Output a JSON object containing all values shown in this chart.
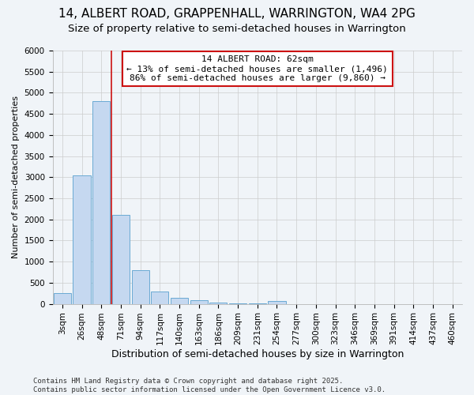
{
  "title1": "14, ALBERT ROAD, GRAPPENHALL, WARRINGTON, WA4 2PG",
  "title2": "Size of property relative to semi-detached houses in Warrington",
  "xlabel": "Distribution of semi-detached houses by size in Warrington",
  "ylabel": "Number of semi-detached properties",
  "categories": [
    "3sqm",
    "26sqm",
    "48sqm",
    "71sqm",
    "94sqm",
    "117sqm",
    "140sqm",
    "163sqm",
    "186sqm",
    "209sqm",
    "231sqm",
    "254sqm",
    "277sqm",
    "300sqm",
    "323sqm",
    "346sqm",
    "369sqm",
    "391sqm",
    "414sqm",
    "437sqm",
    "460sqm"
  ],
  "values": [
    250,
    3050,
    4800,
    2100,
    800,
    300,
    150,
    80,
    30,
    10,
    5,
    60,
    0,
    0,
    0,
    0,
    0,
    0,
    0,
    0,
    0
  ],
  "bar_color": "#c5d8f0",
  "bar_edge_color": "#6aaad4",
  "vline_position": 2.5,
  "annotation_title": "14 ALBERT ROAD: 62sqm",
  "annotation_line1": "← 13% of semi-detached houses are smaller (1,496)",
  "annotation_line2": "86% of semi-detached houses are larger (9,860) →",
  "vline_color": "#cc1111",
  "annotation_box_edge": "#cc1111",
  "ylim_max": 6000,
  "yticks": [
    0,
    500,
    1000,
    1500,
    2000,
    2500,
    3000,
    3500,
    4000,
    4500,
    5000,
    5500,
    6000
  ],
  "footer1": "Contains HM Land Registry data © Crown copyright and database right 2025.",
  "footer2": "Contains public sector information licensed under the Open Government Licence v3.0.",
  "bg_color": "#f0f4f8",
  "plot_bg_color": "#f0f4f8",
  "grid_color": "#cccccc",
  "title1_fontsize": 11,
  "title2_fontsize": 9.5,
  "xlabel_fontsize": 9,
  "ylabel_fontsize": 8,
  "tick_fontsize": 7.5,
  "footer_fontsize": 6.5,
  "annot_fontsize": 8
}
